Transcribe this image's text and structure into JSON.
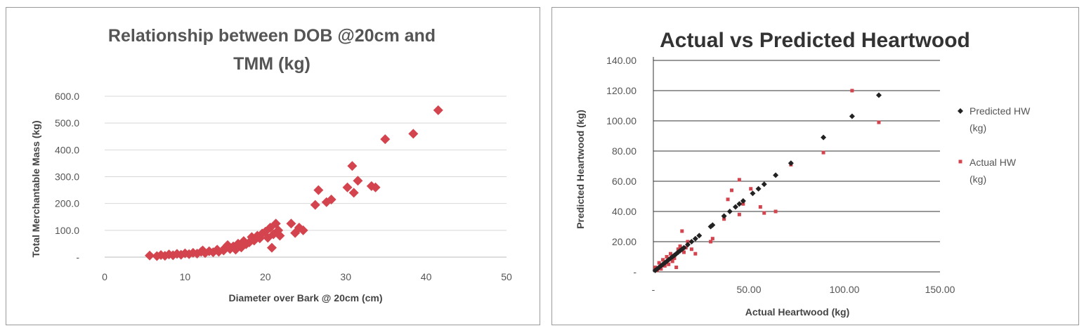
{
  "chart_data": [
    {
      "type": "scatter",
      "title_lines": [
        "Relationship between DOB @20cm and",
        "TMM (kg)"
      ],
      "xlabel": "Diameter over Bark @ 20cm (cm)",
      "ylabel": "Total Merchantable Mass (kg)",
      "xlim": [
        0,
        50
      ],
      "ylim": [
        0,
        600
      ],
      "x_ticks": [
        "0",
        "10",
        "20",
        "30",
        "40",
        "50"
      ],
      "y_ticks": [
        "-",
        "100.0",
        "200.0",
        "300.0",
        "400.0",
        "500.0",
        "600.0"
      ],
      "grid": true,
      "marker_color": "#d4444e",
      "series": [
        {
          "points": [
            [
              5.6,
              6
            ],
            [
              6.5,
              4
            ],
            [
              7.0,
              8
            ],
            [
              7.5,
              5
            ],
            [
              8.0,
              10
            ],
            [
              8.5,
              7
            ],
            [
              9.0,
              12
            ],
            [
              9.5,
              9
            ],
            [
              10.0,
              14
            ],
            [
              10.5,
              11
            ],
            [
              11.0,
              16
            ],
            [
              11.5,
              13
            ],
            [
              12.0,
              20
            ],
            [
              12.2,
              25
            ],
            [
              12.5,
              15
            ],
            [
              13.0,
              22
            ],
            [
              13.5,
              18
            ],
            [
              14.0,
              28
            ],
            [
              14.2,
              20
            ],
            [
              14.8,
              25
            ],
            [
              15.0,
              35
            ],
            [
              15.3,
              45
            ],
            [
              15.6,
              30
            ],
            [
              16.0,
              40
            ],
            [
              16.3,
              28
            ],
            [
              16.6,
              50
            ],
            [
              17.0,
              36
            ],
            [
              17.3,
              60
            ],
            [
              17.6,
              48
            ],
            [
              18.0,
              55
            ],
            [
              18.3,
              75
            ],
            [
              18.6,
              62
            ],
            [
              19.0,
              80
            ],
            [
              19.3,
              70
            ],
            [
              19.6,
              88
            ],
            [
              20.0,
              95
            ],
            [
              20.3,
              72
            ],
            [
              20.6,
              110
            ],
            [
              20.8,
              35
            ],
            [
              21.0,
              85
            ],
            [
              21.3,
              125
            ],
            [
              21.6,
              100
            ],
            [
              21.8,
              80
            ],
            [
              23.2,
              125
            ],
            [
              23.7,
              90
            ],
            [
              24.2,
              110
            ],
            [
              24.7,
              100
            ],
            [
              26.2,
              195
            ],
            [
              26.6,
              250
            ],
            [
              27.6,
              205
            ],
            [
              28.2,
              215
            ],
            [
              30.2,
              260
            ],
            [
              30.8,
              340
            ],
            [
              31.0,
              240
            ],
            [
              31.5,
              285
            ],
            [
              33.2,
              265
            ],
            [
              33.7,
              260
            ],
            [
              34.9,
              440
            ],
            [
              38.4,
              460
            ],
            [
              41.5,
              548
            ]
          ]
        }
      ]
    },
    {
      "type": "scatter",
      "title": "Actual vs Predicted Heartwood",
      "xlabel": "Actual Heartwood (kg)",
      "ylabel": "Predicted Heartwood (kg)",
      "xlim": [
        0,
        150
      ],
      "ylim": [
        0,
        140
      ],
      "x_ticks": [
        "-",
        "50.00",
        "100.00",
        "150.00"
      ],
      "y_ticks": [
        "-",
        "20.00",
        "40.00",
        "60.00",
        "80.00",
        "100.00",
        "120.00",
        "140.00"
      ],
      "grid": true,
      "legend_position": "right",
      "series": [
        {
          "name": "Predicted HW (kg)",
          "legend_lines": [
            "Predicted HW",
            "(kg)"
          ],
          "color": "#222222",
          "marker": "diamond",
          "points": [
            [
              1,
              1
            ],
            [
              2,
              2
            ],
            [
              3,
              3
            ],
            [
              4,
              4
            ],
            [
              5,
              5
            ],
            [
              6,
              6
            ],
            [
              7,
              7
            ],
            [
              8,
              8
            ],
            [
              9,
              9
            ],
            [
              10,
              10
            ],
            [
              11,
              11
            ],
            [
              12,
              12
            ],
            [
              13,
              13
            ],
            [
              14,
              14
            ],
            [
              15,
              15
            ],
            [
              16,
              16
            ],
            [
              18,
              18
            ],
            [
              20,
              20
            ],
            [
              22,
              22
            ],
            [
              24,
              24
            ],
            [
              30,
              30
            ],
            [
              31,
              31
            ],
            [
              37,
              37
            ],
            [
              40,
              40
            ],
            [
              43,
              43
            ],
            [
              45,
              45
            ],
            [
              47,
              47
            ],
            [
              52,
              52
            ],
            [
              55,
              55
            ],
            [
              58,
              58
            ],
            [
              64,
              64
            ],
            [
              72,
              72
            ],
            [
              89,
              89
            ],
            [
              104,
              103
            ],
            [
              118,
              117
            ]
          ]
        },
        {
          "name": "Actual HW (kg)",
          "legend_lines": [
            "Actual HW",
            "(kg)"
          ],
          "color": "#d4444e",
          "marker": "square",
          "points": [
            [
              1,
              3
            ],
            [
              2,
              1
            ],
            [
              3,
              6
            ],
            [
              4,
              2
            ],
            [
              5,
              8
            ],
            [
              6,
              4
            ],
            [
              7,
              10
            ],
            [
              8,
              5
            ],
            [
              9,
              12
            ],
            [
              10,
              7
            ],
            [
              11,
              9
            ],
            [
              12,
              3
            ],
            [
              13,
              15
            ],
            [
              14,
              17
            ],
            [
              15,
              27
            ],
            [
              16,
              13
            ],
            [
              17,
              16
            ],
            [
              18,
              20
            ],
            [
              20,
              15
            ],
            [
              22,
              12
            ],
            [
              30,
              20
            ],
            [
              31,
              22
            ],
            [
              37,
              35
            ],
            [
              39,
              48
            ],
            [
              41,
              54
            ],
            [
              45,
              38
            ],
            [
              45,
              61
            ],
            [
              47,
              45
            ],
            [
              51,
              55
            ],
            [
              56,
              43
            ],
            [
              58,
              39
            ],
            [
              64,
              40
            ],
            [
              72,
              71
            ],
            [
              89,
              79
            ],
            [
              104,
              120
            ],
            [
              118,
              99
            ]
          ]
        }
      ]
    }
  ]
}
